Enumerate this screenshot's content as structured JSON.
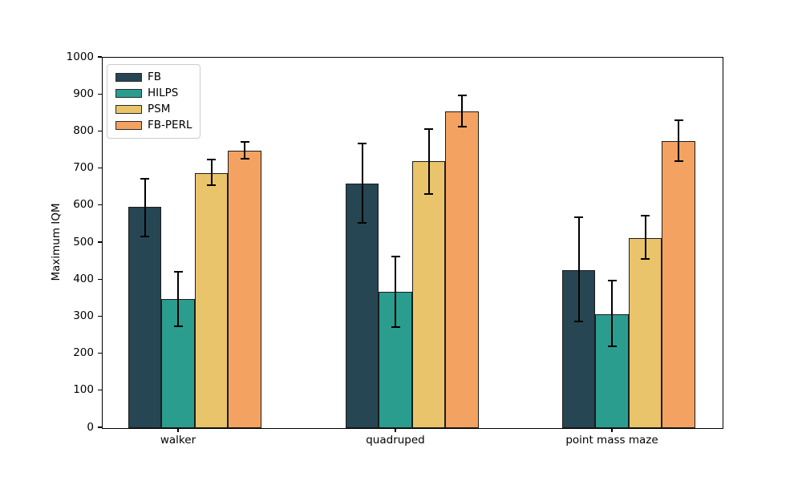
{
  "figure": {
    "background": "#ffffff",
    "spine_color": "#000000",
    "error_bar_color": "#000000",
    "bar_edge_color": "#1c1c1c"
  },
  "chart_data": {
    "type": "bar",
    "title": "",
    "xlabel": "",
    "ylabel": "Maximum IQM",
    "ylim": [
      0,
      1000
    ],
    "yticks": [
      0,
      100,
      200,
      300,
      400,
      500,
      600,
      700,
      800,
      900,
      1000
    ],
    "categories": [
      "walker",
      "quadruped",
      "point mass maze"
    ],
    "series": [
      {
        "name": "FB",
        "color": "#264653",
        "values": [
          595,
          659,
          424
        ],
        "err_low": [
          516,
          553,
          285
        ],
        "err_high": [
          672,
          766,
          568
        ]
      },
      {
        "name": "HILPS",
        "color": "#2a9d8f",
        "values": [
          346,
          365,
          305
        ],
        "err_low": [
          272,
          271,
          218
        ],
        "err_high": [
          419,
          460,
          396
        ]
      },
      {
        "name": "PSM",
        "color": "#e9c46a",
        "values": [
          686,
          718,
          510
        ],
        "err_low": [
          654,
          630,
          455
        ],
        "err_high": [
          722,
          806,
          572
        ]
      },
      {
        "name": "FB-PERL",
        "color": "#f4a261",
        "values": [
          746,
          853,
          772
        ],
        "err_low": [
          726,
          812,
          718
        ],
        "err_high": [
          770,
          897,
          829
        ]
      }
    ],
    "legend": {
      "position": "upper-left",
      "entries": [
        "FB",
        "HILPS",
        "PSM",
        "FB-PERL"
      ]
    },
    "grid": false
  }
}
